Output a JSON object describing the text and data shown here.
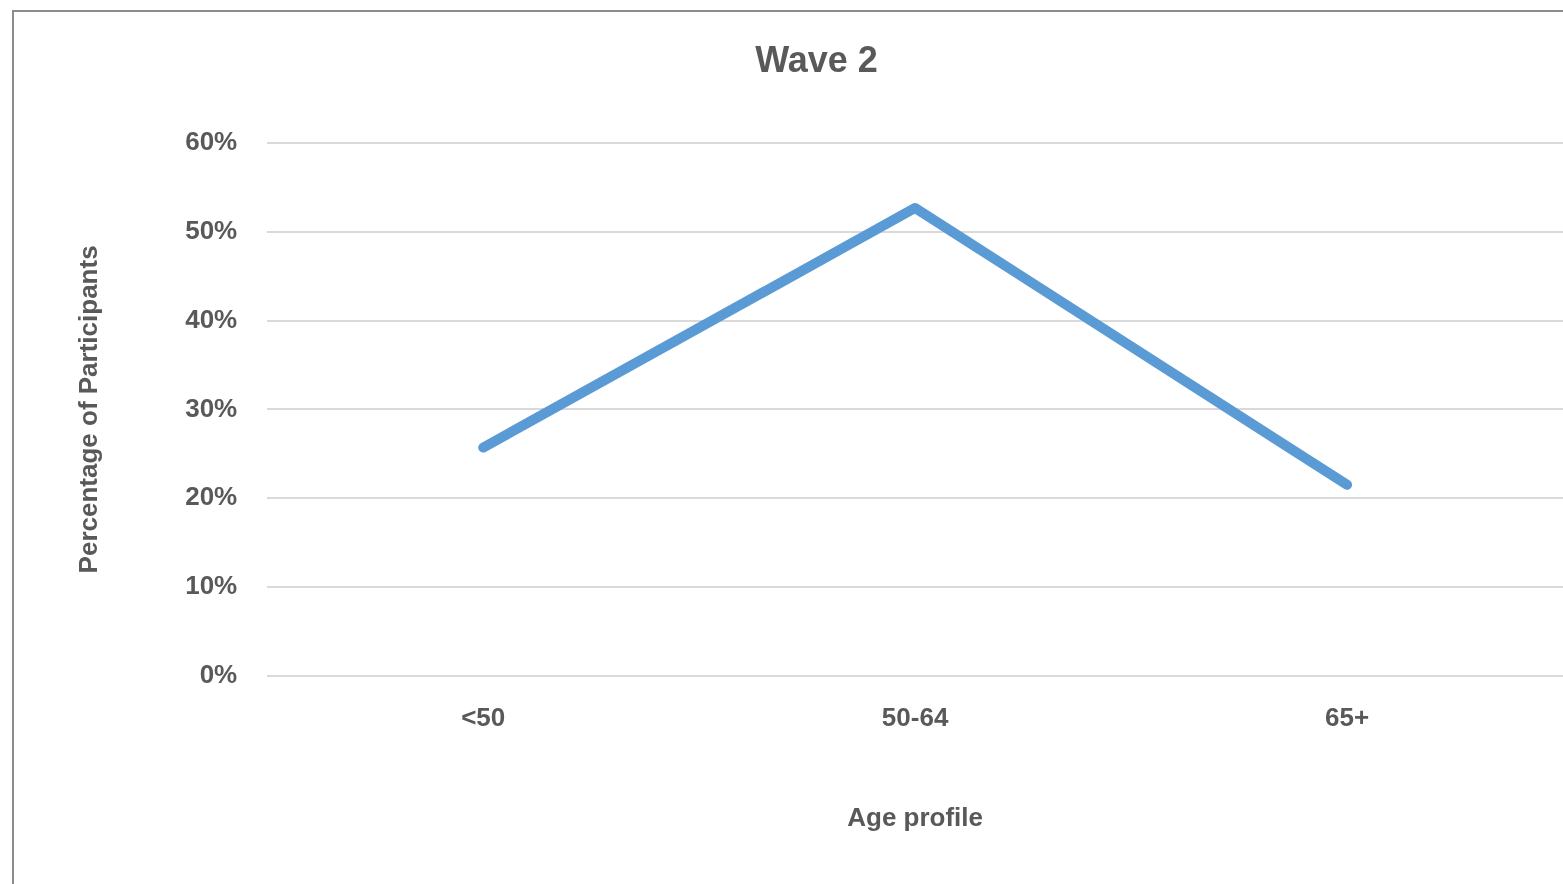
{
  "chart_data": {
    "type": "line",
    "title": "Wave 2",
    "xlabel": "Age profile",
    "ylabel": "Percentage of Participants",
    "categories": [
      "<50",
      "50-64",
      "65+"
    ],
    "series": [
      {
        "color": "#5b9bd5",
        "values": [
          25.7,
          52.7,
          21.5
        ]
      }
    ],
    "ylim": [
      0,
      60
    ],
    "yticks": [
      {
        "value": 0,
        "label": "0%"
      },
      {
        "value": 10,
        "label": "10%"
      },
      {
        "value": 20,
        "label": "20%"
      },
      {
        "value": 30,
        "label": "30%"
      },
      {
        "value": 40,
        "label": "40%"
      },
      {
        "value": 50,
        "label": "50%"
      },
      {
        "value": 60,
        "label": "60%"
      }
    ],
    "grid": "y",
    "legend": false,
    "marker": "none",
    "line_style": "solid"
  }
}
